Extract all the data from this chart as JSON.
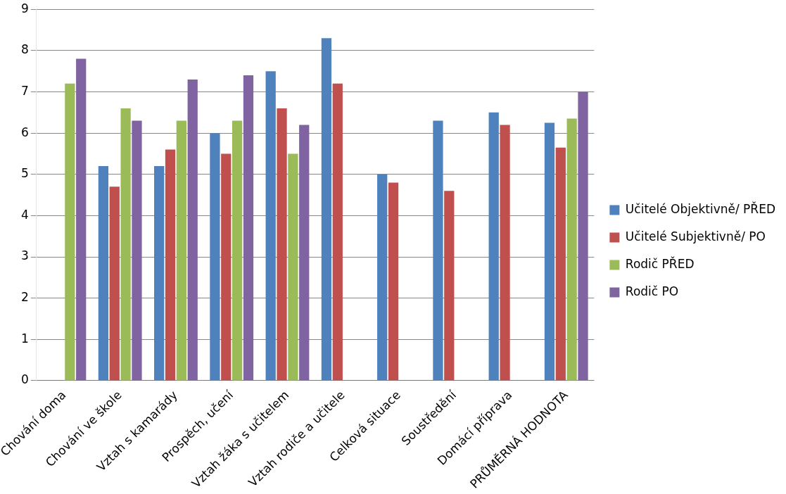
{
  "chart_data": {
    "type": "bar",
    "categories": [
      "Chování doma",
      "Chování ve škole",
      "Vztah s kamarády",
      "Prospěch, učení",
      "Vztah žáka s učitelem",
      "Vztah rodiče a učitele",
      "Celková situace",
      "Soustředění",
      "Domácí příprava",
      "PRŮMĚRNÁ HODNOTA"
    ],
    "series": [
      {
        "name": "Učitelé Objektivně/ PŘED",
        "color": "#4f81bd",
        "values": [
          null,
          5.2,
          5.2,
          6.0,
          7.5,
          8.3,
          5.0,
          6.3,
          6.5,
          6.25
        ]
      },
      {
        "name": "Učitelé Subjektivně/ PO",
        "color": "#c0504d",
        "values": [
          null,
          4.7,
          5.6,
          5.5,
          6.6,
          7.2,
          4.8,
          4.6,
          6.2,
          5.65
        ]
      },
      {
        "name": "Rodič PŘED",
        "color": "#9bbb59",
        "values": [
          7.2,
          6.6,
          6.3,
          6.3,
          5.5,
          null,
          null,
          null,
          null,
          6.35
        ]
      },
      {
        "name": "Rodič PO",
        "color": "#8064a2",
        "values": [
          7.8,
          6.3,
          7.3,
          7.4,
          6.2,
          null,
          null,
          null,
          null,
          7.0
        ]
      }
    ],
    "ylim": [
      0,
      9
    ],
    "yticks": [
      0,
      1,
      2,
      3,
      4,
      5,
      6,
      7,
      8,
      9
    ],
    "grid": "y",
    "legend": "right"
  }
}
